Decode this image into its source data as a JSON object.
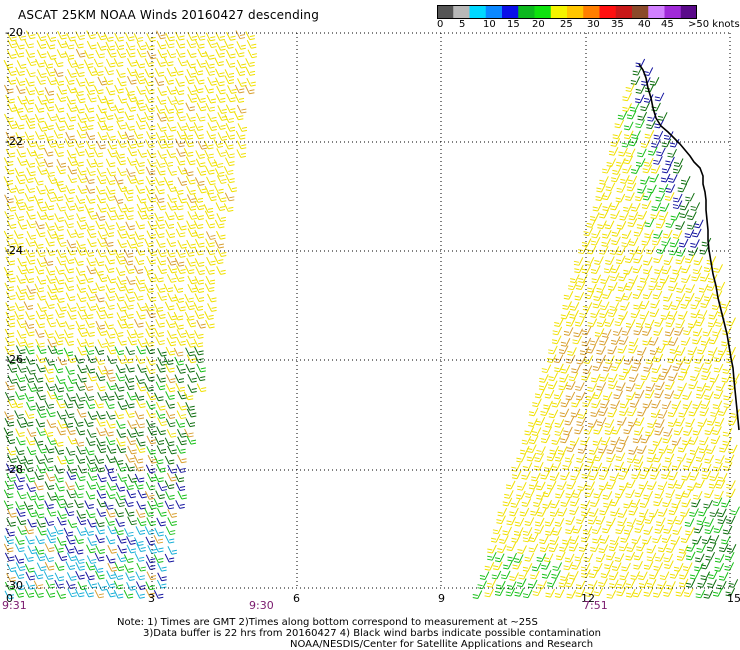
{
  "title": "ASCAT 25KM NOAA Winds 20160427 descending",
  "color_scale": {
    "swatches": [
      "#555555",
      "#b8b8b8",
      "#00d8ff",
      "#0a88ff",
      "#0a10e8",
      "#0cb81e",
      "#0ee20e",
      "#f4f400",
      "#ffc600",
      "#ff7f00",
      "#ff1010",
      "#c81818",
      "#8a4a2a",
      "#d280ff",
      "#a02ad8",
      "#5a0a8a"
    ],
    "labels": [
      "0",
      "5",
      "10",
      "15",
      "20",
      "25",
      "30",
      "35",
      "40",
      "45",
      ">50 knots"
    ]
  },
  "lat_labels": [
    "-20",
    "-22",
    "-24",
    "-26",
    "-28",
    "-30"
  ],
  "lon_labels": [
    "0",
    "3",
    "6",
    "9",
    "12",
    "15"
  ],
  "time_labels": [
    "9:31",
    "9:30",
    "7:51"
  ],
  "notes": [
    "Note: 1) Times are GMT 2)Times along bottom correspond to measurement at ~25S",
    "3)Data buffer is 22 hrs from 20160427 4) Black wind barbs indicate possible contamination",
    "NOAA/NESDIS/Center for Satellite Applications and Research"
  ],
  "map": {
    "lat_range": [
      -30,
      -20
    ],
    "lon_range": [
      0,
      15
    ],
    "grid": "dotted",
    "coast_color": "#000000",
    "wind_colors": {
      "cyan": "#1ab0d8",
      "blue": "#1414a0",
      "green_dark": "#0e6e0e",
      "green": "#18c018",
      "yellow": "#f0e000",
      "orange": "#d8a030"
    }
  }
}
